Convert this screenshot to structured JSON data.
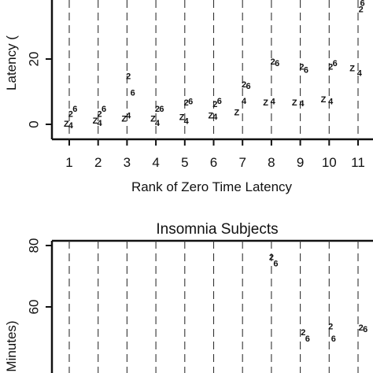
{
  "chart_data": [
    {
      "type": "scatter",
      "title": "",
      "xlabel": "Rank of Zero Time Latency",
      "ylabel": "Latency (",
      "x_ticks": [
        "1",
        "2",
        "3",
        "4",
        "5",
        "6",
        "7",
        "8",
        "9",
        "10",
        "11"
      ],
      "y_ticks": [
        "0",
        "20"
      ],
      "ylim": [
        -4,
        42
      ],
      "grid": "vertical dashed lines at each rank",
      "series": [
        {
          "marker": "Z",
          "points": [
            [
              0.9,
              0
            ],
            [
              1.9,
              1
            ],
            [
              2.9,
              1.5
            ],
            [
              3.9,
              1.5
            ],
            [
              4.9,
              2
            ],
            [
              5.9,
              2.5
            ],
            [
              6.8,
              3.5
            ],
            [
              7.8,
              6.5
            ],
            [
              8.8,
              6.5
            ],
            [
              9.8,
              7.5
            ],
            [
              10.8,
              17
            ],
            [
              11.1,
              39
            ]
          ]
        },
        {
          "marker": "4",
          "points": [
            [
              1.05,
              -0.5
            ],
            [
              2.05,
              0.2
            ],
            [
              3.05,
              2.5
            ],
            [
              4.05,
              0.2
            ],
            [
              5.05,
              0.8
            ],
            [
              6.05,
              2.2
            ],
            [
              7.05,
              7
            ],
            [
              8.05,
              6.8
            ],
            [
              9.05,
              6.2
            ],
            [
              10.05,
              6.8
            ],
            [
              11.05,
              15.5
            ]
          ]
        },
        {
          "marker": "2",
          "points": [
            [
              1.05,
              3
            ],
            [
              2.05,
              3
            ],
            [
              3.05,
              14.5
            ],
            [
              4.05,
              4.5
            ],
            [
              5.05,
              6.5
            ],
            [
              6.05,
              6
            ],
            [
              7.05,
              12
            ],
            [
              8.05,
              19
            ],
            [
              9.05,
              17.5
            ],
            [
              10.05,
              17.5
            ],
            [
              11.1,
              35
            ]
          ]
        },
        {
          "marker": "6",
          "points": [
            [
              1.2,
              4.5
            ],
            [
              2.2,
              4.5
            ],
            [
              3.2,
              9.5
            ],
            [
              4.2,
              4.5
            ],
            [
              5.2,
              6.8
            ],
            [
              6.2,
              7
            ],
            [
              7.2,
              11.5
            ],
            [
              8.2,
              18.5
            ],
            [
              9.2,
              16.5
            ],
            [
              10.2,
              18.5
            ],
            [
              11.15,
              37
            ]
          ]
        }
      ]
    },
    {
      "type": "scatter",
      "title": "Insomnia Subjects",
      "xlabel": "",
      "ylabel": "Minutes)",
      "y_ticks": [
        "80",
        "60"
      ],
      "ylim": [
        44,
        82
      ],
      "grid": "vertical dashed lines at each rank",
      "series": [
        {
          "marker": "2",
          "points": [
            [
              8.0,
              76
            ],
            [
              9.1,
              51.5
            ],
            [
              10.05,
              53.5
            ],
            [
              11.1,
              53
            ]
          ]
        },
        {
          "marker": "6",
          "points": [
            [
              8.15,
              74
            ],
            [
              9.25,
              49.5
            ],
            [
              10.15,
              49.5
            ],
            [
              11.25,
              52.5
            ]
          ]
        }
      ]
    }
  ]
}
